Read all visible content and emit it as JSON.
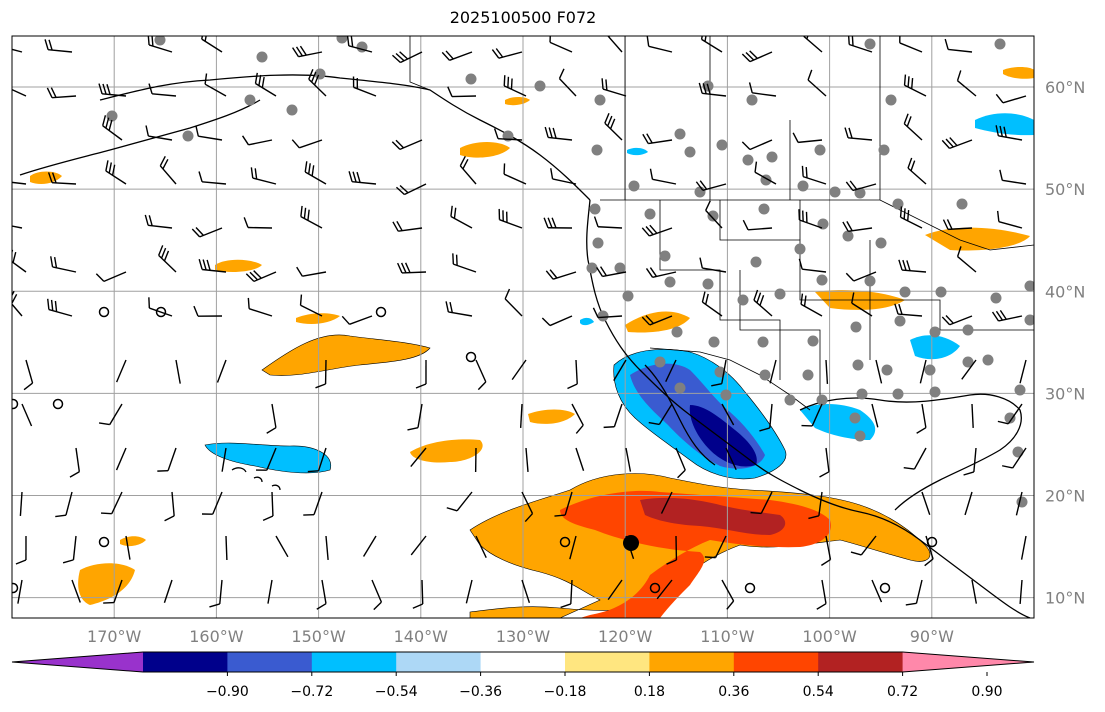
{
  "title": "2025100500 F072",
  "lat_labels": [
    {
      "lat": 60,
      "label": "60°N"
    },
    {
      "lat": 50,
      "label": "50°N"
    },
    {
      "lat": 40,
      "label": "40°N"
    },
    {
      "lat": 30,
      "label": "30°N"
    },
    {
      "lat": 20,
      "label": "20°N"
    },
    {
      "lat": 10,
      "label": "10°N"
    }
  ],
  "lon_labels": [
    {
      "lon": -170,
      "label": "170°W"
    },
    {
      "lon": -160,
      "label": "160°W"
    },
    {
      "lon": -150,
      "label": "150°W"
    },
    {
      "lon": -140,
      "label": "140°W"
    },
    {
      "lon": -130,
      "label": "130°W"
    },
    {
      "lon": -120,
      "label": "120°W"
    },
    {
      "lon": -110,
      "label": "110°W"
    },
    {
      "lon": -100,
      "label": "100°W"
    },
    {
      "lon": -90,
      "label": "90°W"
    }
  ],
  "extent": {
    "lon": [
      -180,
      -80
    ],
    "lat": [
      8,
      65
    ]
  },
  "colorbar": {
    "ticks": [
      "−0.90",
      "−0.72",
      "−0.54",
      "−0.36",
      "−0.18",
      "0.18",
      "0.36",
      "0.54",
      "0.72",
      "0.90"
    ],
    "colors": [
      "#9932cc",
      "#00008b",
      "#3a5bd0",
      "#00bfff",
      "#add8f6",
      "#ffffff",
      "#ffe680",
      "#ffa500",
      "#ff4500",
      "#b22222",
      "#ff88aa"
    ]
  },
  "colors": {
    "strong_neg": "#00008b",
    "mid_neg": "#3a5bd0",
    "neg": "#00bfff",
    "pos": "#ffa500",
    "mid_pos": "#ff4500",
    "strong_pos": "#b22222",
    "grid": "#a0a0a0",
    "station": "#808080"
  }
}
